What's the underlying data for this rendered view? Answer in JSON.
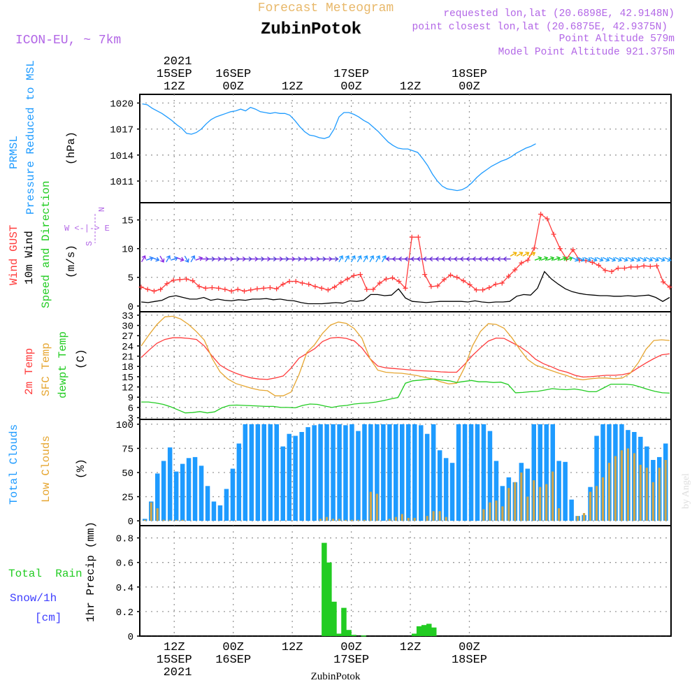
{
  "header": {
    "title_top": "Forecast Meteogram",
    "location": "ZubinPotok",
    "model": "ICON-EU, ~ 7km",
    "requested": "requested lon,lat (20.6898E, 42.9148N)",
    "closest": "point closest lon,lat (20.6875E, 42.9375N)",
    "point_altitude": "Point Altitude 579m",
    "model_altitude": "Model Point Altitude 921.375m",
    "footer_location": "ZubinPotok",
    "watermark": "by Angel"
  },
  "time_axis": {
    "hours": [
      0,
      108
    ],
    "top_year": "2021",
    "ticks": [
      {
        "h": 7,
        "top": "15SEP",
        "bottom": "12Z"
      },
      {
        "h": 19,
        "top": "16SEP",
        "bottom": "00Z"
      },
      {
        "h": 31,
        "top": "",
        "bottom": "12Z"
      },
      {
        "h": 43,
        "top": "17SEP",
        "bottom": "00Z"
      },
      {
        "h": 55,
        "top": "",
        "bottom": "12Z"
      },
      {
        "h": 67,
        "top": "18SEP",
        "bottom": "00Z"
      }
    ]
  },
  "panels": {
    "pressure": {
      "label_main": "Pressure Reduced to MSL",
      "label_short": "PRMSL",
      "unit": "(hPa)"
    },
    "wind": {
      "label_gust": "Wind GUST",
      "label_wind": "10m Wind",
      "label_dir": "Speed and Direction",
      "unit": "(m/s)",
      "compass_n": "N",
      "compass_s": "S",
      "compass_we": "W <-|-> E"
    },
    "temp": {
      "label_2m": "2m Temp",
      "label_sfc": "SFC Temp",
      "label_dew": "dewpt Temp",
      "unit": "(C)"
    },
    "clouds": {
      "label_total": "Total Clouds",
      "label_low": "Low Clouds",
      "unit": "(%)"
    },
    "precip": {
      "label_rain": "Total  Rain",
      "label_snow": "Snow/1h",
      "label_cm": "[cm]",
      "label_axis": "1hr Precip (mm)"
    }
  },
  "chart_data": [
    {
      "type": "line",
      "title": "Pressure Reduced to MSL",
      "ylabel": "hPa",
      "ylim": [
        1008.5,
        1021
      ],
      "yticks": [
        1011,
        1014,
        1017,
        1020
      ],
      "x": [
        0,
        1,
        2,
        3,
        4,
        5,
        6,
        7,
        8,
        9,
        10,
        11,
        12,
        13,
        14,
        15,
        16,
        17,
        18,
        19,
        20,
        21,
        22,
        23,
        24,
        25,
        26,
        27,
        28,
        29,
        30,
        31,
        32,
        33,
        34,
        35,
        36,
        37,
        38,
        39,
        40,
        41,
        42,
        43,
        44,
        45,
        46,
        47,
        48,
        49,
        50,
        51,
        52,
        53,
        54,
        55,
        56,
        57,
        58,
        59,
        60,
        61,
        62,
        63,
        64,
        65,
        66,
        67,
        68,
        69,
        70,
        71,
        72,
        73,
        74,
        75,
        76,
        77,
        78,
        79,
        80
      ],
      "series": [
        {
          "name": "PRMSL",
          "color": "#1e9bff",
          "values": [
            1019.9,
            1019.8,
            1019.4,
            1019.1,
            1018.8,
            1018.4,
            1018.0,
            1017.5,
            1017.1,
            1016.5,
            1016.4,
            1016.6,
            1017.0,
            1017.6,
            1018.1,
            1018.4,
            1018.6,
            1018.8,
            1019.0,
            1019.1,
            1019.3,
            1019.1,
            1019.5,
            1019.3,
            1019.0,
            1018.9,
            1018.8,
            1018.9,
            1018.8,
            1018.8,
            1018.6,
            1018.0,
            1017.3,
            1016.7,
            1016.3,
            1016.2,
            1016.0,
            1015.9,
            1016.1,
            1017.0,
            1018.4,
            1018.9,
            1018.9,
            1018.7,
            1018.4,
            1018.0,
            1017.7,
            1017.2,
            1016.7,
            1016.1,
            1015.5,
            1015.1,
            1014.8,
            1014.7,
            1014.7,
            1014.5,
            1014.3,
            1013.6,
            1012.8,
            1011.8,
            1011.0,
            1010.4,
            1010.1,
            1010.0,
            1009.9,
            1010.0,
            1010.3,
            1010.8,
            1011.4,
            1011.9,
            1012.3,
            1012.7,
            1013.0,
            1013.3,
            1013.5,
            1013.8,
            1014.2,
            1014.5,
            1014.8,
            1015.0,
            1015.3
          ]
        }
      ]
    },
    {
      "type": "line",
      "title": "Wind GUST / 10m Wind Speed and Direction",
      "ylabel": "m/s",
      "ylim": [
        -1,
        18
      ],
      "yticks": [
        0,
        5,
        10,
        15
      ],
      "series": [
        {
          "name": "Wind GUST",
          "color": "#ff3b3b",
          "values": [
            3.3,
            2.9,
            2.6,
            2.9,
            3.9,
            4.5,
            4.6,
            4.7,
            4.4,
            3.4,
            3.1,
            3.2,
            3.1,
            2.9,
            2.6,
            2.9,
            2.6,
            2.8,
            3.0,
            3.1,
            3.2,
            3.0,
            3.8,
            4.3,
            4.3,
            4.0,
            3.8,
            3.4,
            3.1,
            2.8,
            3.3,
            4.1,
            4.7,
            5.3,
            5.5,
            2.9,
            2.9,
            4.0,
            4.7,
            4.9,
            4.3,
            3.1,
            12.0,
            12.0,
            5.5,
            3.4,
            3.5,
            4.6,
            5.4,
            5.0,
            4.4,
            3.7,
            2.8,
            2.8,
            3.2,
            3.8,
            4.0,
            5.2,
            6.3,
            7.5,
            8.0,
            10.1,
            16.0,
            15.2,
            12.5,
            10.0,
            8.2,
            9.8,
            8.0,
            7.9,
            7.6,
            7.1,
            6.2,
            6.0,
            6.6,
            6.6,
            6.8,
            6.8,
            7.0,
            6.9,
            7.0,
            4.2,
            3.3
          ]
        },
        {
          "name": "10m Wind",
          "color": "#000000",
          "values": [
            0.7,
            0.6,
            0.8,
            1.0,
            1.6,
            1.8,
            1.5,
            1.2,
            1.2,
            1.5,
            1.0,
            1.2,
            1.0,
            0.9,
            1.1,
            1.0,
            1.2,
            1.2,
            1.3,
            1.1,
            1.2,
            1.0,
            0.9,
            0.6,
            0.4,
            0.4,
            0.4,
            0.5,
            0.6,
            0.5,
            0.9,
            0.8,
            1.0,
            2.0,
            2.0,
            1.8,
            1.9,
            3.0,
            1.4,
            0.8,
            0.7,
            0.6,
            0.7,
            0.8,
            0.8,
            0.8,
            0.8,
            0.7,
            0.9,
            0.7,
            0.6,
            0.7,
            0.7,
            0.8,
            1.7,
            2.0,
            1.9,
            3.1,
            6.0,
            4.7,
            3.8,
            3.0,
            2.5,
            2.2,
            2.0,
            1.9,
            1.8,
            1.8,
            1.7,
            1.7,
            1.8,
            1.7,
            1.8,
            1.9,
            1.5,
            0.8,
            1.5
          ]
        }
      ]
    },
    {
      "type": "line",
      "title": "Temperature",
      "ylabel": "C",
      "ylim": [
        2.5,
        34
      ],
      "yticks": [
        3,
        6,
        9,
        12,
        15,
        18,
        21,
        24,
        27,
        30,
        33
      ],
      "series": [
        {
          "name": "2m Temp",
          "color": "#ff3b3b",
          "values": [
            20.6,
            22.8,
            24.8,
            25.9,
            26.4,
            26.4,
            26.2,
            25.9,
            24.0,
            21.0,
            18.4,
            17.0,
            16.0,
            15.2,
            14.6,
            14.3,
            14.2,
            14.6,
            15.2,
            17.5,
            20.4,
            21.8,
            23.2,
            25.3,
            26.3,
            26.5,
            26.2,
            25.5,
            23.4,
            20.3,
            18.1,
            17.6,
            17.4,
            17.2,
            17.0,
            16.8,
            16.7,
            16.6,
            16.4,
            16.3,
            16.3,
            18.6,
            21.2,
            23.4,
            25.4,
            26.3,
            26.2,
            25.0,
            23.8,
            22.2,
            20.1,
            18.8,
            17.9,
            16.9,
            16.3,
            15.4,
            14.9,
            15.0,
            15.2,
            15.4,
            15.4,
            15.6,
            16.1,
            17.6,
            19.0,
            20.3,
            21.4,
            21.7
          ]
        },
        {
          "name": "SFC Temp",
          "color": "#e6a631",
          "values": [
            24.0,
            27.3,
            30.3,
            32.5,
            32.7,
            31.9,
            30.3,
            28.2,
            25.7,
            20.3,
            16.4,
            14.3,
            13.0,
            12.3,
            11.6,
            11.1,
            10.9,
            9.4,
            9.4,
            10.5,
            15.6,
            22.1,
            24.4,
            27.7,
            30.1,
            31.0,
            30.6,
            29.1,
            26.2,
            20.3,
            16.9,
            16.3,
            16.1,
            16.0,
            15.7,
            15.3,
            14.8,
            14.3,
            13.5,
            12.9,
            13.1,
            17.7,
            24.0,
            28.2,
            30.5,
            30.3,
            29.2,
            26.4,
            23.0,
            20.0,
            18.4,
            17.6,
            16.8,
            16.0,
            15.3,
            14.4,
            14.1,
            14.4,
            14.6,
            14.6,
            14.4,
            14.6,
            16.0,
            19.0,
            23.0,
            25.6,
            25.8,
            25.6
          ]
        },
        {
          "name": "dewpt Temp",
          "color": "#22cc22",
          "values": [
            7.6,
            7.6,
            7.3,
            6.9,
            6.2,
            5.3,
            4.4,
            4.5,
            4.8,
            4.4,
            4.7,
            5.9,
            6.6,
            6.7,
            6.6,
            6.5,
            6.4,
            6.3,
            6.3,
            6.0,
            6.0,
            5.9,
            6.6,
            7.0,
            6.9,
            6.4,
            6.0,
            6.4,
            6.6,
            7.0,
            7.2,
            7.3,
            7.6,
            8.0,
            8.5,
            8.9,
            13.1,
            13.8,
            14.0,
            14.2,
            14.3,
            14.0,
            13.8,
            13.3,
            13.6,
            13.9,
            13.5,
            13.5,
            13.3,
            13.4,
            12.7,
            10.3,
            10.4,
            10.6,
            10.7,
            11.1,
            11.5,
            11.3,
            11.2,
            11.4,
            11.1,
            10.6,
            10.6,
            11.7,
            12.8,
            12.8,
            12.8,
            12.6,
            12.0,
            11.3,
            10.7,
            10.3,
            10.2
          ]
        }
      ]
    },
    {
      "type": "bar",
      "title": "Clouds",
      "ylabel": "%",
      "ylim": [
        -5,
        105
      ],
      "yticks": [
        0,
        25,
        50,
        75,
        100
      ],
      "series": [
        {
          "name": "Total Clouds",
          "color": "#1e9bff",
          "values": [
            2,
            20,
            49,
            62,
            76,
            51,
            59,
            65,
            66,
            57,
            36,
            20,
            16,
            33,
            54,
            80,
            100,
            100,
            100,
            100,
            100,
            100,
            77,
            90,
            88,
            92,
            97,
            99,
            100,
            100,
            100,
            100,
            99,
            100,
            93,
            100,
            100,
            100,
            100,
            100,
            100,
            100,
            100,
            100,
            99,
            90,
            100,
            73,
            65,
            60,
            100,
            100,
            100,
            100,
            100,
            93,
            62,
            36,
            45,
            40,
            60,
            54,
            100,
            100,
            100,
            100,
            62,
            61,
            22,
            5,
            6,
            35,
            88,
            100,
            100,
            100,
            100,
            94,
            92,
            87,
            77,
            63,
            66,
            80
          ]
        },
        {
          "name": "Low Clouds",
          "color": "#cfa64a",
          "values": [
            1,
            19,
            13,
            1,
            1,
            1,
            1,
            0,
            0,
            0,
            0,
            0,
            0,
            0,
            0,
            0,
            0,
            0,
            0,
            0,
            0,
            0,
            0,
            0,
            0,
            0,
            0,
            0,
            2,
            4,
            2,
            2,
            1,
            1,
            1,
            1,
            30,
            28,
            0,
            2,
            4,
            7,
            3,
            3,
            0,
            5,
            10,
            10,
            4,
            0,
            0,
            0,
            0,
            0,
            12,
            19,
            21,
            15,
            34,
            40,
            50,
            25,
            42,
            35,
            38,
            51,
            13,
            0,
            0,
            5,
            8,
            30,
            36,
            45,
            60,
            67,
            73,
            75,
            70,
            58,
            55,
            40,
            55,
            63
          ]
        }
      ]
    },
    {
      "type": "bar",
      "title": "1hr Precip",
      "ylabel": "mm",
      "ylim": [
        0,
        0.9
      ],
      "yticks": [
        0,
        0.2,
        0.4,
        0.6,
        0.8
      ],
      "bars": [
        {
          "h": 37.5,
          "v": 0.76
        },
        {
          "h": 38.5,
          "v": 0.6
        },
        {
          "h": 39.5,
          "v": 0.28
        },
        {
          "h": 40.5,
          "v": 0.02
        },
        {
          "h": 41.5,
          "v": 0.23
        },
        {
          "h": 42.5,
          "v": 0.05
        },
        {
          "h": 43.5,
          "v": 0.01
        },
        {
          "h": 45.5,
          "v": 0.005
        },
        {
          "h": 55.8,
          "v": 0.02
        },
        {
          "h": 56.8,
          "v": 0.08
        },
        {
          "h": 57.8,
          "v": 0.09
        },
        {
          "h": 58.8,
          "v": 0.1
        },
        {
          "h": 59.8,
          "v": 0.07
        }
      ],
      "series": [
        {
          "name": "Total Rain",
          "color": "#22cc22"
        }
      ]
    }
  ]
}
